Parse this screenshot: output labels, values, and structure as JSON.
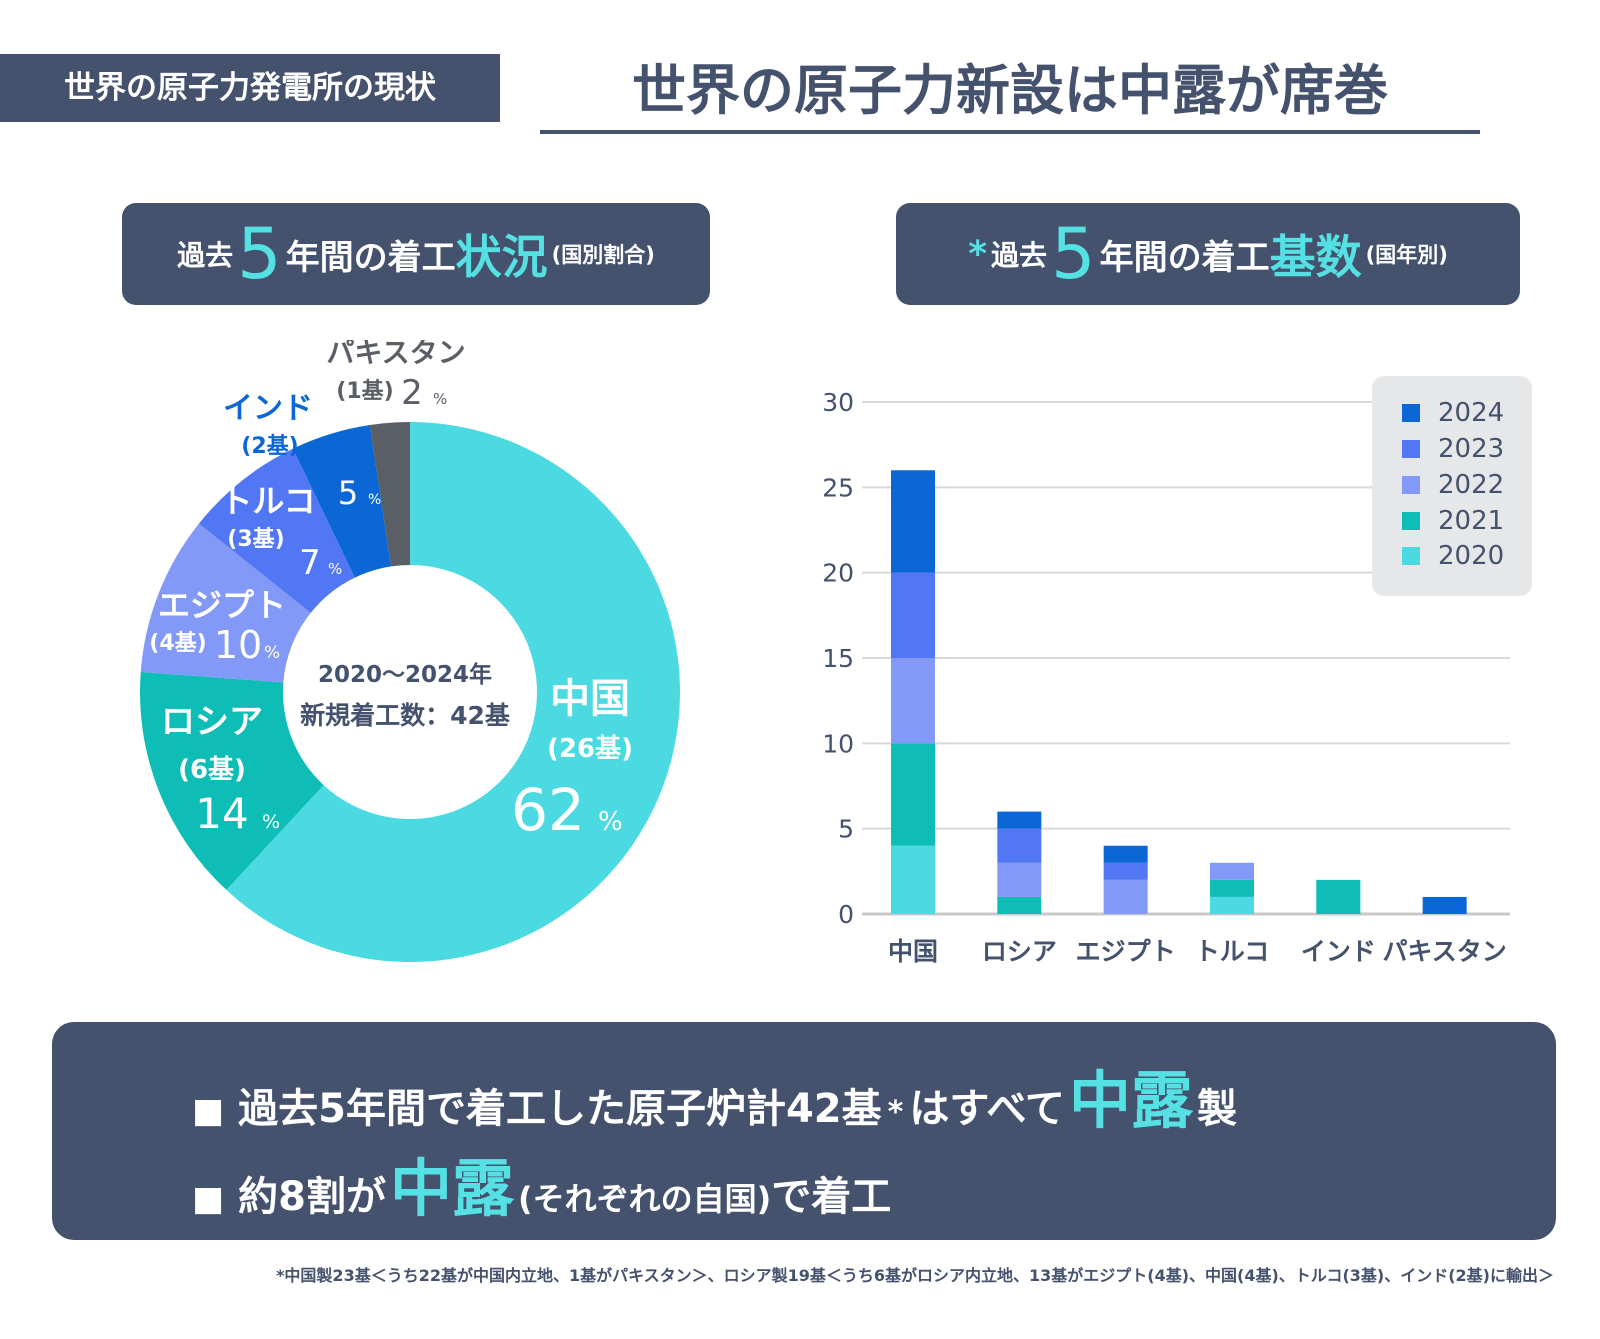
{
  "header": {
    "tag": "世界の原子力発電所の現状",
    "headline": "世界の原子力新設は中露が席巻"
  },
  "left_panel": {
    "title_pre": "過去",
    "title_num": "5",
    "title_mid": "年間の着工",
    "title_accent": "状況",
    "title_sub": "(国別割合)"
  },
  "right_panel": {
    "title_star": "*",
    "title_pre": "過去",
    "title_num": "5",
    "title_mid": "年間の着工",
    "title_accent": "基数",
    "title_sub": "(国年別)"
  },
  "colors": {
    "navy": "#45526d",
    "accent": "#55e0e4",
    "c2020": "#4cdae2",
    "c2021": "#0ebdb6",
    "c2022": "#8299f7",
    "c2023": "#5277f5",
    "c2024": "#0b67d6",
    "pakistan": "#5a5f66",
    "grid": "#d9d9d9",
    "legend_bg": "#e6e7e8"
  },
  "chart_data": [
    {
      "type": "pie",
      "center_label_line1": "2020～2024年",
      "center_label_line2": "新規着工数：42基",
      "slices": [
        {
          "name": "中国",
          "count_label": "(26基)",
          "units": 26,
          "percent_label": "62",
          "color": "#4cdae2"
        },
        {
          "name": "ロシア",
          "count_label": "(6基)",
          "units": 6,
          "percent_label": "14",
          "color": "#0ebdb6"
        },
        {
          "name": "エジプト",
          "count_label": "(4基)",
          "units": 4,
          "percent_label": "10",
          "color": "#8299f7"
        },
        {
          "name": "トルコ",
          "count_label": "(3基)",
          "units": 3,
          "percent_label": "7",
          "color": "#5277f5"
        },
        {
          "name": "インド",
          "count_label": "(2基)",
          "units": 2,
          "percent_label": "5",
          "color": "#0b67d6"
        },
        {
          "name": "パキスタン",
          "count_label": "(1基)",
          "units": 1,
          "percent_label": "2",
          "color": "#5a5f66"
        }
      ],
      "percent_unit": "%"
    },
    {
      "type": "bar",
      "stacked": true,
      "categories": [
        "中国",
        "ロシア",
        "エジプト",
        "トルコ",
        "インド",
        "パキスタン"
      ],
      "series": [
        {
          "name": "2020",
          "color": "#4cdae2",
          "values": [
            4,
            0,
            0,
            1,
            0,
            0
          ]
        },
        {
          "name": "2021",
          "color": "#0ebdb6",
          "values": [
            6,
            1,
            0,
            1,
            2,
            0
          ]
        },
        {
          "name": "2022",
          "color": "#8299f7",
          "values": [
            5,
            2,
            2,
            1,
            0,
            0
          ]
        },
        {
          "name": "2023",
          "color": "#5277f5",
          "values": [
            5,
            2,
            1,
            0,
            0,
            0
          ]
        },
        {
          "name": "2024",
          "color": "#0b67d6",
          "values": [
            6,
            1,
            1,
            0,
            0,
            1
          ]
        }
      ],
      "ylim": [
        0,
        30
      ],
      "yticks": [
        "0",
        "5",
        "10",
        "15",
        "20",
        "25",
        "30"
      ],
      "grid": true,
      "legend_position": "top-right"
    }
  ],
  "summary": {
    "bullet": "■",
    "line1_a": "過去5年間で着工した原子炉計42基",
    "line1_star": "*",
    "line1_b": "はすべて",
    "line1_h": "中露",
    "line1_c": "製",
    "line2_a": "約8割が",
    "line2_h": "中露",
    "line2_paren": "(それぞれの自国)",
    "line2_b": "で着工"
  },
  "footnote": "*中国製23基＜うち22基が中国内立地、1基がパキスタン＞、ロシア製19基＜うち6基がロシア内立地、13基がエジプト(4基)、中国(4基)、トルコ(3基)、インド(2基)に輸出＞"
}
